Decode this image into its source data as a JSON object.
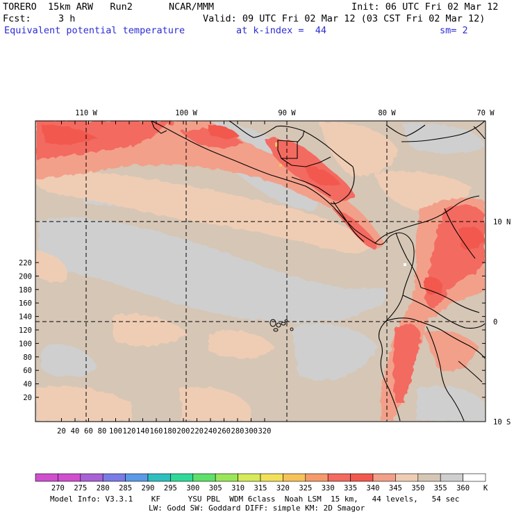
{
  "header": {
    "model": "TORERO  15km ARW   Run2",
    "org": "NCAR/MMM",
    "init": "Init: 06 UTC Fri 02 Mar 12",
    "fcst_label": "Fcst:",
    "fcst_value": "3 h",
    "valid": "Valid: 09 UTC Fri 02 Mar 12 (03 CST Fri 02 Mar 12)",
    "field": "Equivalent potential temperature",
    "level": "at k-index =  44",
    "smoothing": "sm= 2"
  },
  "map": {
    "lon_labels": [
      "110 W",
      "100 W",
      "90 W",
      "80 W",
      "70 W"
    ],
    "lat_labels": [
      "10 N",
      "0",
      "10 S"
    ],
    "x_ticks": [
      "20",
      "40",
      "60",
      "80",
      "100",
      "120",
      "140",
      "160",
      "180",
      "200",
      "220",
      "240",
      "260",
      "280",
      "300",
      "320"
    ],
    "y_ticks": [
      "20",
      "40",
      "60",
      "80",
      "100",
      "120",
      "140",
      "160",
      "180",
      "200",
      "220"
    ]
  },
  "colorbar": {
    "labels": [
      "270",
      "275",
      "280",
      "285",
      "290",
      "295",
      "300",
      "305",
      "310",
      "315",
      "320",
      "325",
      "330",
      "335",
      "340",
      "345",
      "350",
      "355",
      "360"
    ],
    "unit": "K",
    "colors": [
      "#cf4fcf",
      "#a862d6",
      "#7b7be6",
      "#5a9ae6",
      "#2fbfbf",
      "#2fd99a",
      "#5fe06a",
      "#9ae65a",
      "#d6ea5a",
      "#f2e05a",
      "#f6c25a",
      "#f59a6a",
      "#f36a60",
      "#f2584e",
      "#f2a08a",
      "#efcdb4",
      "#d6c6b6",
      "#cfcfcf",
      "#ffffff"
    ]
  },
  "footer": {
    "line1": "Model Info: V3.3.1    KF      YSU PBL  WDM 6class  Noah LSM  15 km,   44 levels,   54 sec",
    "line2": "LW: Godd SW: Goddard DIFF: simple KM: 2D Smagor"
  }
}
